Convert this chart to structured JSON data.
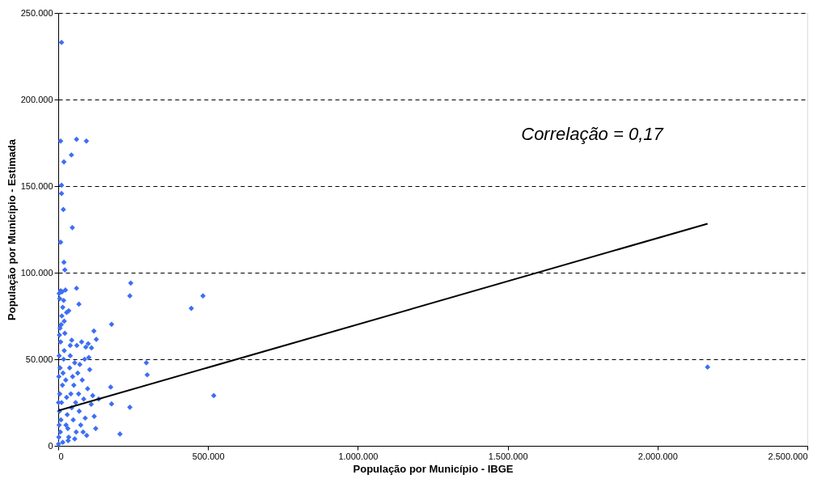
{
  "chart_data": {
    "type": "scatter",
    "xlabel": "População por Município - IBGE",
    "ylabel": "População por Município - Estimada",
    "annotations": [
      "Correlação = 0,17"
    ],
    "xlim": [
      0,
      2500000
    ],
    "xticks": [
      {
        "value": 0,
        "label": "0"
      },
      {
        "value": 500000,
        "label": "500.000"
      },
      {
        "value": 1000000,
        "label": "1.000.000"
      },
      {
        "value": 1500000,
        "label": "1.500.000"
      },
      {
        "value": 2000000,
        "label": "2.000.000"
      },
      {
        "value": 2500000,
        "label": "2.500.000"
      }
    ],
    "ylim": [
      0,
      250000
    ],
    "yticks": [
      {
        "value": 0,
        "label": "0"
      },
      {
        "value": 50000,
        "label": "50.000"
      },
      {
        "value": 100000,
        "label": "100.000"
      },
      {
        "value": 150000,
        "label": "150.000"
      },
      {
        "value": 200000,
        "label": "200.000"
      },
      {
        "value": 250000,
        "label": "250.000"
      }
    ],
    "grid": "y",
    "legend": false,
    "series": [
      {
        "color": "#3d6ef5",
        "marker": "diamond",
        "x": [
          11000,
          8000,
          61000,
          94000,
          44000,
          19000,
          11000,
          11000,
          17000,
          47000,
          8000,
          19000,
          22000,
          61000,
          8000,
          242000,
          239000,
          483000,
          444000,
          178000,
          69000,
          294000,
          297000,
          519000,
          2167000,
          239000,
          206000,
          178000,
          175000,
          119000,
          127000,
          111000,
          2000,
          3000,
          4000,
          5000,
          6000,
          8000,
          10000,
          12000,
          15000,
          7000,
          9000,
          11000,
          14000,
          16000,
          18000,
          20000,
          22000,
          25000,
          28000,
          30000,
          32000,
          35000,
          38000,
          40000,
          42000,
          45000,
          48000,
          50000,
          52000,
          55000,
          58000,
          60000,
          62000,
          65000,
          68000,
          70000,
          72000,
          75000,
          78000,
          80000,
          85000,
          88000,
          90000,
          95000,
          98000,
          100000,
          105000,
          110000,
          115000,
          120000,
          125000,
          135000,
          1000,
          3000,
          5000,
          13000,
          18000,
          24000,
          28000,
          35000,
          4000,
          6000,
          20000,
          40000,
          45000,
          2000,
          1000,
          3000,
          26000,
          33000,
          15000,
          55000,
          102000,
          92000,
          83000
        ],
        "values": [
          233000,
          176000,
          177000,
          176000,
          168000,
          164000,
          150500,
          145700,
          136500,
          126000,
          117600,
          106000,
          101600,
          91000,
          89500,
          94000,
          86600,
          86600,
          79400,
          70200,
          81800,
          48000,
          41000,
          29000,
          45500,
          22300,
          6800,
          24200,
          33900,
          66300,
          61500,
          56600,
          5000,
          12000,
          20000,
          30000,
          45000,
          60000,
          70000,
          75000,
          80000,
          8000,
          15000,
          25000,
          35000,
          42000,
          50000,
          55000,
          65000,
          38000,
          28000,
          18000,
          10000,
          5000,
          45000,
          52000,
          30000,
          22000,
          40000,
          15000,
          35000,
          48000,
          25000,
          8000,
          58000,
          42000,
          30000,
          20000,
          47000,
          12000,
          60000,
          38000,
          27000,
          50000,
          16000,
          6000,
          33000,
          59000,
          44000,
          24000,
          29000,
          17000,
          10000,
          27000,
          1000,
          88000,
          85000,
          89000,
          84000,
          90000,
          77000,
          78000,
          64000,
          68000,
          72000,
          58000,
          61000,
          40000,
          25000,
          52000,
          12000,
          3000,
          2000,
          4000,
          51000,
          57000,
          8000
        ]
      },
      {
        "type": "line",
        "color": "#000000",
        "x": [
          0,
          2167000
        ],
        "values": [
          20300,
          128300
        ]
      }
    ]
  }
}
